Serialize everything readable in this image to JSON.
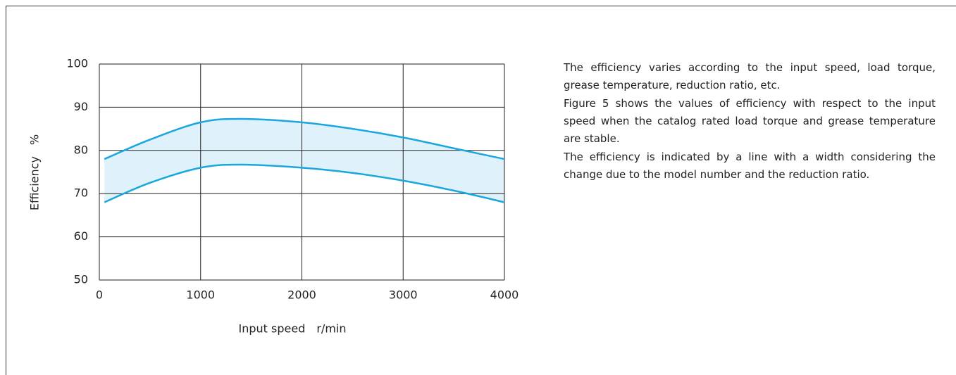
{
  "chart_data": {
    "type": "line",
    "xlabel": "Input speed　r/min",
    "ylabel": "Efficiency　%",
    "x": [
      50,
      500,
      1000,
      1400,
      2000,
      2500,
      3000,
      3500,
      4000
    ],
    "series": [
      {
        "color": "#1aa6de",
        "values": [
          78,
          82.5,
          86.5,
          87.3,
          86.5,
          85,
          83,
          80.5,
          78
        ]
      },
      {
        "color": "#1aa6de",
        "values": [
          68,
          72.5,
          76,
          76.7,
          76,
          74.8,
          73,
          70.7,
          68
        ]
      }
    ],
    "band_color": "#dff2fb",
    "xlim": [
      0,
      4000
    ],
    "xticks": [
      0,
      1000,
      2000,
      3000,
      4000
    ],
    "ylim": [
      50,
      100
    ],
    "yticks": [
      50,
      60,
      70,
      80,
      90,
      100
    ],
    "grid": true
  },
  "description": [
    "The efficiency varies according to the input speed, load torque, grease temperature, reduction ratio, etc.",
    "Figure 5 shows the values of efficiency with respect to the input speed when the catalog rated load torque and grease temperature are stable.",
    "The efficiency is indicated by a line with a width considering the change due to the model number and the reduction ratio."
  ]
}
